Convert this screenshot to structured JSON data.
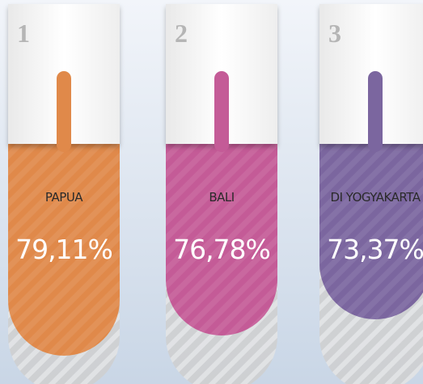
{
  "items": [
    {
      "rank": "1",
      "name": "PAPUA",
      "value": "79,11%",
      "color": "#e0894a"
    },
    {
      "rank": "2",
      "name": "BALI",
      "value": "76,78%",
      "color": "#c45b97"
    },
    {
      "rank": "3",
      "name": "DI YOGYAKARTA",
      "value": "73,37%",
      "color": "#7b669f"
    }
  ]
}
